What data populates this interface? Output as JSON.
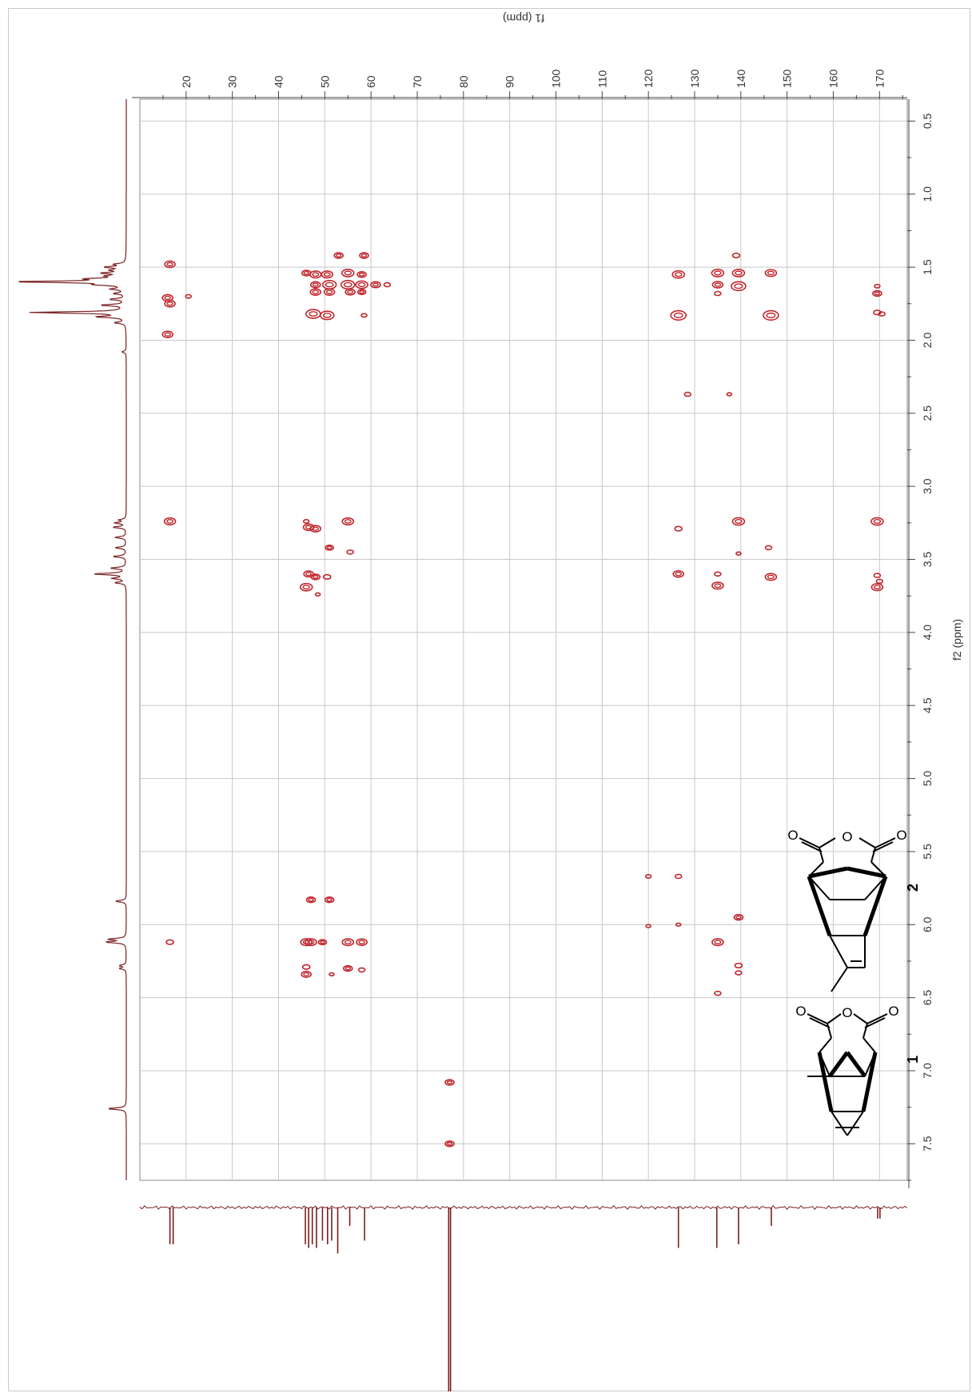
{
  "chart_data": {
    "type": "heatmap",
    "subtype": "2D NMR HMBC contour plot (plot rotated 90 degrees)",
    "colors": {
      "contour": "#c0262c",
      "trace": "#7a1f1f",
      "grid": "#c8c8c8"
    },
    "f1_axis": {
      "label": "f1 (ppm)",
      "range": [
        10,
        176
      ],
      "ticks": [
        "20",
        "30",
        "40",
        "50",
        "60",
        "70",
        "80",
        "90",
        "100",
        "110",
        "120",
        "130",
        "140",
        "150",
        "160",
        "170"
      ]
    },
    "f2_axis": {
      "label": "f2 (ppm)",
      "range": [
        0.35,
        7.75
      ],
      "ticks": [
        "0.5",
        "1.0",
        "1.5",
        "2.0",
        "2.5",
        "3.0",
        "3.5",
        "4.0",
        "4.5",
        "5.0",
        "5.5",
        "6.0",
        "6.5",
        "7.0",
        "7.5"
      ]
    },
    "grid": true,
    "compound_labels": [
      "1",
      "2"
    ],
    "structure_atoms": {
      "oxygen": "O"
    },
    "proton_spectrum": [
      {
        "h": 1.48,
        "i": 0.1
      },
      {
        "h": 1.5,
        "i": 0.18
      },
      {
        "h": 1.52,
        "i": 0.12
      },
      {
        "h": 1.54,
        "i": 0.2
      },
      {
        "h": 1.56,
        "i": 0.14
      },
      {
        "h": 1.58,
        "i": 0.3
      },
      {
        "h": 1.6,
        "i": 1.0
      },
      {
        "h": 1.62,
        "i": 0.22
      },
      {
        "h": 1.65,
        "i": 0.12
      },
      {
        "h": 1.68,
        "i": 0.1
      },
      {
        "h": 1.72,
        "i": 0.14
      },
      {
        "h": 1.76,
        "i": 0.22
      },
      {
        "h": 1.81,
        "i": 0.85
      },
      {
        "h": 1.84,
        "i": 0.25
      },
      {
        "h": 1.88,
        "i": 0.1
      },
      {
        "h": 2.08,
        "i": 0.04
      },
      {
        "h": 3.23,
        "i": 0.06
      },
      {
        "h": 3.25,
        "i": 0.1
      },
      {
        "h": 3.28,
        "i": 0.12
      },
      {
        "h": 3.35,
        "i": 0.1
      },
      {
        "h": 3.42,
        "i": 0.1
      },
      {
        "h": 3.48,
        "i": 0.12
      },
      {
        "h": 3.56,
        "i": 0.14
      },
      {
        "h": 3.6,
        "i": 0.3
      },
      {
        "h": 3.63,
        "i": 0.12
      },
      {
        "h": 3.66,
        "i": 0.1
      },
      {
        "h": 5.84,
        "i": 0.1
      },
      {
        "h": 6.1,
        "i": 0.16
      },
      {
        "h": 6.12,
        "i": 0.18
      },
      {
        "h": 6.28,
        "i": 0.06
      },
      {
        "h": 6.3,
        "i": 0.06
      },
      {
        "h": 7.26,
        "i": 0.17
      }
    ],
    "carbon_spectrum": [
      {
        "c": 16.5,
        "i": 0.2
      },
      {
        "c": 17.2,
        "i": 0.2
      },
      {
        "c": 45.8,
        "i": 0.2
      },
      {
        "c": 46.5,
        "i": 0.22
      },
      {
        "c": 47.3,
        "i": 0.2
      },
      {
        "c": 48.2,
        "i": 0.22
      },
      {
        "c": 49.5,
        "i": 0.18
      },
      {
        "c": 50.6,
        "i": 0.2
      },
      {
        "c": 51.5,
        "i": 0.18
      },
      {
        "c": 52.8,
        "i": 0.25
      },
      {
        "c": 55.4,
        "i": 0.1
      },
      {
        "c": 58.6,
        "i": 0.18
      },
      {
        "c": 76.8,
        "i": 1.0
      },
      {
        "c": 77.2,
        "i": 1.0
      },
      {
        "c": 126.5,
        "i": 0.22
      },
      {
        "c": 134.8,
        "i": 0.22
      },
      {
        "c": 139.5,
        "i": 0.2
      },
      {
        "c": 146.6,
        "i": 0.1
      },
      {
        "c": 169.6,
        "i": 0.06
      },
      {
        "c": 170.1,
        "i": 0.06
      }
    ],
    "peaks": [
      {
        "c": 16.5,
        "h": 1.48,
        "s": 1
      },
      {
        "c": 16.0,
        "h": 1.71,
        "s": 1
      },
      {
        "c": 16.5,
        "h": 1.75,
        "s": 1
      },
      {
        "c": 16.0,
        "h": 1.96,
        "s": 1
      },
      {
        "c": 20.5,
        "h": 1.7,
        "s": 0.4
      },
      {
        "c": 53.0,
        "h": 1.42,
        "s": 0.8
      },
      {
        "c": 58.5,
        "h": 1.42,
        "s": 0.8
      },
      {
        "c": 46.0,
        "h": 1.54,
        "s": 0.8
      },
      {
        "c": 48.0,
        "h": 1.55,
        "s": 1.1
      },
      {
        "c": 50.5,
        "h": 1.55,
        "s": 1.1
      },
      {
        "c": 55.0,
        "h": 1.54,
        "s": 1.2
      },
      {
        "c": 58.0,
        "h": 1.55,
        "s": 0.8
      },
      {
        "c": 48.0,
        "h": 1.62,
        "s": 0.9
      },
      {
        "c": 51.0,
        "h": 1.62,
        "s": 1.4
      },
      {
        "c": 55.0,
        "h": 1.62,
        "s": 1.4
      },
      {
        "c": 58.0,
        "h": 1.62,
        "s": 1.2
      },
      {
        "c": 61.0,
        "h": 1.62,
        "s": 0.9
      },
      {
        "c": 63.5,
        "h": 1.62,
        "s": 0.5
      },
      {
        "c": 48.0,
        "h": 1.67,
        "s": 1
      },
      {
        "c": 51.0,
        "h": 1.67,
        "s": 1
      },
      {
        "c": 55.5,
        "h": 1.67,
        "s": 0.9
      },
      {
        "c": 58.0,
        "h": 1.67,
        "s": 0.7
      },
      {
        "c": 47.5,
        "h": 1.82,
        "s": 1.5
      },
      {
        "c": 50.5,
        "h": 1.83,
        "s": 1.4
      },
      {
        "c": 58.5,
        "h": 1.83,
        "s": 0.4
      },
      {
        "c": 126.5,
        "h": 1.55,
        "s": 1.2
      },
      {
        "c": 135.0,
        "h": 1.54,
        "s": 1.2
      },
      {
        "c": 139.5,
        "h": 1.54,
        "s": 1.2
      },
      {
        "c": 146.5,
        "h": 1.54,
        "s": 1.1
      },
      {
        "c": 135.0,
        "h": 1.62,
        "s": 1
      },
      {
        "c": 139.5,
        "h": 1.63,
        "s": 1.5
      },
      {
        "c": 135.0,
        "h": 1.68,
        "s": 0.5
      },
      {
        "c": 139.0,
        "h": 1.42,
        "s": 0.6
      },
      {
        "c": 126.5,
        "h": 1.83,
        "s": 1.6
      },
      {
        "c": 146.5,
        "h": 1.83,
        "s": 1.6
      },
      {
        "c": 169.5,
        "h": 1.63,
        "s": 0.4
      },
      {
        "c": 169.5,
        "h": 1.68,
        "s": 0.8
      },
      {
        "c": 169.5,
        "h": 1.81,
        "s": 0.6
      },
      {
        "c": 170.5,
        "h": 1.82,
        "s": 0.5
      },
      {
        "c": 128.5,
        "h": 2.37,
        "s": 0.5
      },
      {
        "c": 137.5,
        "h": 2.37,
        "s": 0.3
      },
      {
        "c": 16.5,
        "h": 3.24,
        "s": 1.1
      },
      {
        "c": 46.0,
        "h": 3.24,
        "s": 0.4
      },
      {
        "c": 46.5,
        "h": 3.28,
        "s": 1
      },
      {
        "c": 48.0,
        "h": 3.29,
        "s": 1
      },
      {
        "c": 55.0,
        "h": 3.24,
        "s": 1.1
      },
      {
        "c": 51.0,
        "h": 3.42,
        "s": 0.7
      },
      {
        "c": 55.5,
        "h": 3.45,
        "s": 0.5
      },
      {
        "c": 126.5,
        "h": 3.29,
        "s": 0.6
      },
      {
        "c": 139.5,
        "h": 3.24,
        "s": 1.2
      },
      {
        "c": 139.5,
        "h": 3.46,
        "s": 0.3
      },
      {
        "c": 146.0,
        "h": 3.42,
        "s": 0.5
      },
      {
        "c": 169.5,
        "h": 3.24,
        "s": 1.2
      },
      {
        "c": 46.5,
        "h": 3.6,
        "s": 0.9
      },
      {
        "c": 48.0,
        "h": 3.62,
        "s": 0.8
      },
      {
        "c": 50.5,
        "h": 3.62,
        "s": 0.6
      },
      {
        "c": 46.0,
        "h": 3.69,
        "s": 1.2
      },
      {
        "c": 48.5,
        "h": 3.74,
        "s": 0.3
      },
      {
        "c": 126.5,
        "h": 3.6,
        "s": 1
      },
      {
        "c": 135.0,
        "h": 3.6,
        "s": 0.5
      },
      {
        "c": 135.0,
        "h": 3.68,
        "s": 1.1
      },
      {
        "c": 146.5,
        "h": 3.62,
        "s": 1.1
      },
      {
        "c": 169.5,
        "h": 3.61,
        "s": 0.5
      },
      {
        "c": 170.0,
        "h": 3.65,
        "s": 0.5
      },
      {
        "c": 169.5,
        "h": 3.69,
        "s": 1.1
      },
      {
        "c": 47.0,
        "h": 5.83,
        "s": 0.8
      },
      {
        "c": 51.0,
        "h": 5.83,
        "s": 0.8
      },
      {
        "c": 46.0,
        "h": 6.12,
        "s": 1.1
      },
      {
        "c": 47.0,
        "h": 6.12,
        "s": 1.1
      },
      {
        "c": 49.5,
        "h": 6.12,
        "s": 0.7
      },
      {
        "c": 55.0,
        "h": 6.12,
        "s": 1.1
      },
      {
        "c": 58.0,
        "h": 6.12,
        "s": 1
      },
      {
        "c": 46.0,
        "h": 6.29,
        "s": 0.6
      },
      {
        "c": 46.0,
        "h": 6.34,
        "s": 0.9
      },
      {
        "c": 51.5,
        "h": 6.34,
        "s": 0.3
      },
      {
        "c": 55.0,
        "h": 6.3,
        "s": 0.8
      },
      {
        "c": 58.0,
        "h": 6.31,
        "s": 0.5
      },
      {
        "c": 16.5,
        "h": 6.12,
        "s": 0.6
      },
      {
        "c": 120.0,
        "h": 5.67,
        "s": 0.4
      },
      {
        "c": 120.0,
        "h": 6.01,
        "s": 0.3
      },
      {
        "c": 126.5,
        "h": 5.67,
        "s": 0.5
      },
      {
        "c": 126.5,
        "h": 6.0,
        "s": 0.3
      },
      {
        "c": 139.5,
        "h": 5.95,
        "s": 0.8
      },
      {
        "c": 135.0,
        "h": 6.12,
        "s": 1.1
      },
      {
        "c": 139.5,
        "h": 6.28,
        "s": 0.6
      },
      {
        "c": 139.5,
        "h": 6.33,
        "s": 0.5
      },
      {
        "c": 135.0,
        "h": 6.47,
        "s": 0.5
      },
      {
        "c": 77.0,
        "h": 7.08,
        "s": 0.8
      },
      {
        "c": 77.0,
        "h": 7.5,
        "s": 0.8
      }
    ]
  }
}
